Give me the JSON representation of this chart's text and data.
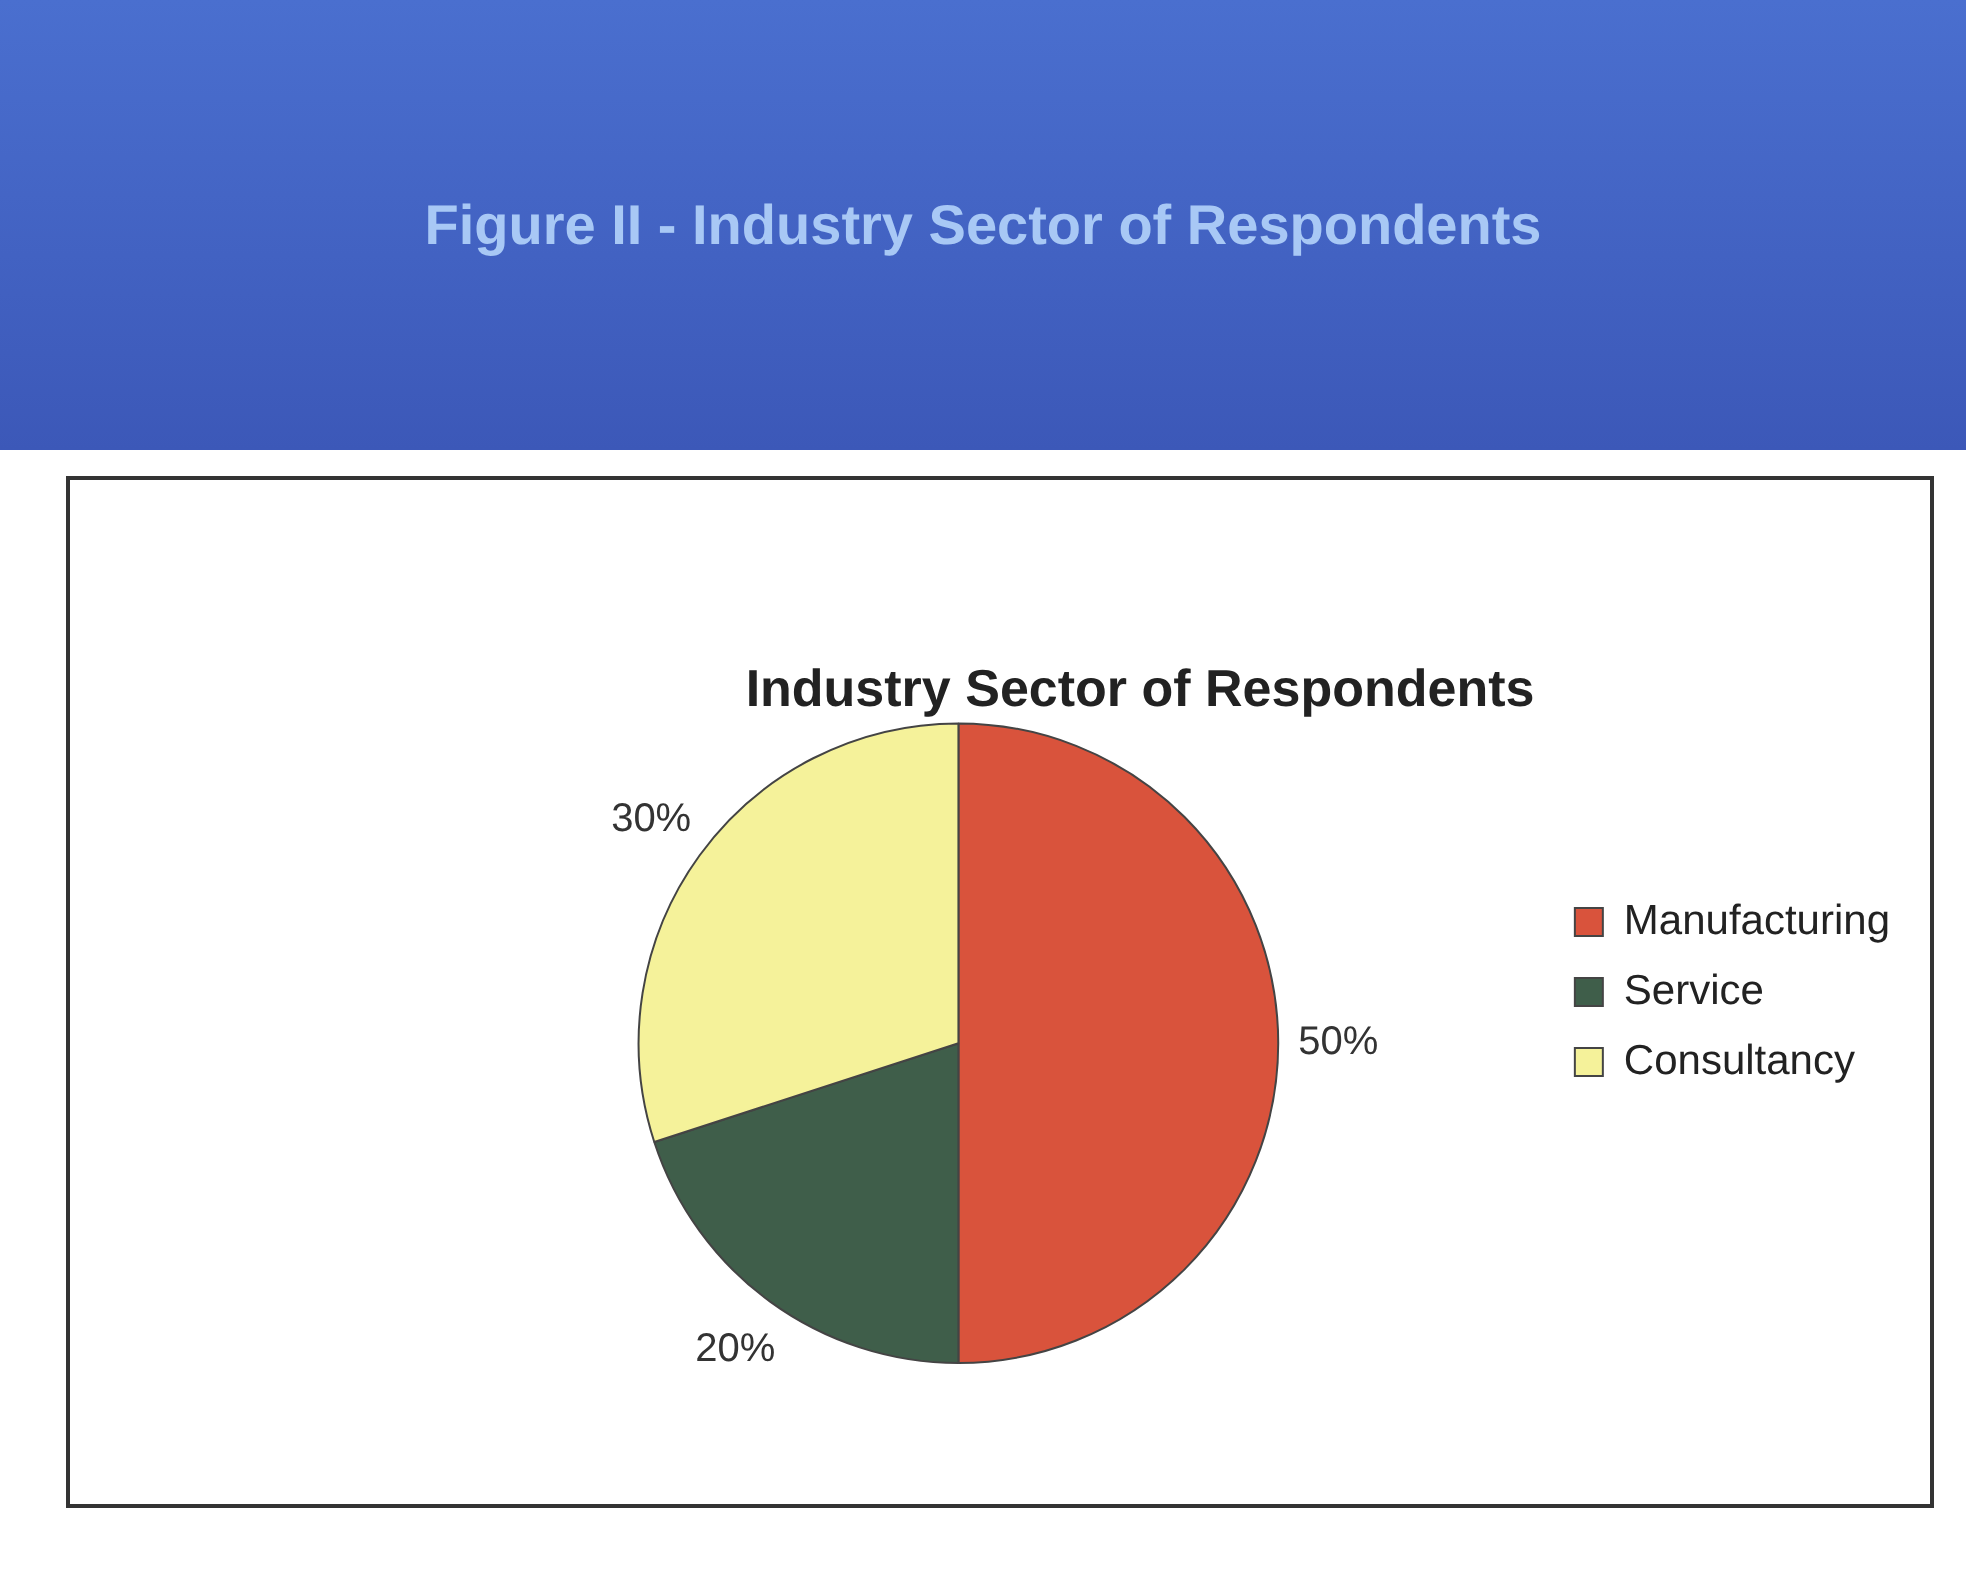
{
  "chart_data": {
    "type": "pie",
    "title": "Figure II - Industry Sector of Respondents",
    "subtitle": "Industry Sector of Respondents",
    "categories": [
      "Manufacturing",
      "Service",
      "Consultancy"
    ],
    "values": [
      50,
      20,
      30
    ],
    "value_labels": [
      "50%",
      "20%",
      "30%"
    ],
    "colors": [
      "#d9533c",
      "#3f5e4a",
      "#f5f29a"
    ],
    "legend": "right"
  }
}
